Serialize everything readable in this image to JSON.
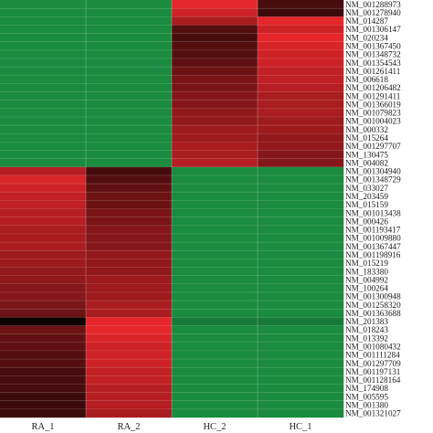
{
  "chart_data": {
    "type": "heatmap",
    "title": "",
    "columns": [
      "RA_1",
      "RA_2",
      "HC_2",
      "HC_1"
    ],
    "rows": [
      "NM_001288973",
      "NM_001278940",
      "NM_014287",
      "NM_001306147",
      "NM_020234",
      "NM_001367450",
      "NM_001348732",
      "NM_001354543",
      "NM_001261411",
      "NM_006618",
      "NM_001206482",
      "NM_001291411",
      "NM_001366019",
      "NM_001079823",
      "NM_001004023",
      "NM_000332",
      "NM_015264",
      "NM_001297707",
      "NM_130475",
      "NM_004082",
      "NM_001304940",
      "NM_001348729",
      "NM_033027",
      "NM_203459",
      "NM_015159",
      "NM_001013438",
      "NM_000426",
      "NM_001193417",
      "NM_001009880",
      "NM_001367447",
      "NM_001198916",
      "NM_015219",
      "NM_183380",
      "NM_004992",
      "NM_100264",
      "NM_001300948",
      "NM_001258320",
      "NM_001363688",
      "NM_201383",
      "NM_018243",
      "NM_013392",
      "NM_001080432",
      "NM_001111284",
      "NM_001297709",
      "NM_001197131",
      "NM_001128164",
      "NM_174908",
      "NM_005595",
      "NM_001380",
      "NM_001321027"
    ],
    "color_scale": {
      "low": "#1fa34a",
      "mid": "#000000",
      "high": "#f1282d"
    },
    "value_range": [
      -1,
      1
    ],
    "values": [
      [
        -0.85,
        -0.85,
        0.95,
        0.3
      ],
      [
        -0.85,
        -0.85,
        0.85,
        0.25
      ],
      [
        -0.85,
        -0.85,
        0.7,
        0.95
      ],
      [
        -0.85,
        -0.85,
        0.35,
        0.85
      ],
      [
        -0.85,
        -0.85,
        0.3,
        0.95
      ],
      [
        -0.85,
        -0.85,
        0.35,
        0.9
      ],
      [
        -0.85,
        -0.85,
        0.35,
        0.85
      ],
      [
        -0.85,
        -0.85,
        0.4,
        0.85
      ],
      [
        -0.85,
        -0.85,
        0.45,
        0.8
      ],
      [
        -0.85,
        -0.85,
        0.5,
        0.8
      ],
      [
        -0.85,
        -0.85,
        0.5,
        0.75
      ],
      [
        -0.85,
        -0.85,
        0.55,
        0.7
      ],
      [
        -0.85,
        -0.85,
        0.55,
        0.7
      ],
      [
        -0.85,
        -0.85,
        0.6,
        0.7
      ],
      [
        -0.85,
        -0.85,
        0.6,
        0.65
      ],
      [
        -0.85,
        -0.85,
        0.65,
        0.65
      ],
      [
        -0.85,
        -0.85,
        0.65,
        0.6
      ],
      [
        -0.85,
        -0.85,
        0.7,
        0.6
      ],
      [
        -0.85,
        -0.85,
        0.7,
        0.55
      ],
      [
        -0.85,
        -0.85,
        0.75,
        0.55
      ],
      [
        0.75,
        0.3,
        -0.85,
        -0.85
      ],
      [
        0.9,
        0.35,
        -0.85,
        -0.85
      ],
      [
        0.85,
        0.4,
        -0.85,
        -0.85
      ],
      [
        0.8,
        0.45,
        -0.85,
        -0.85
      ],
      [
        0.8,
        0.45,
        -0.85,
        -0.85
      ],
      [
        0.75,
        0.5,
        -0.85,
        -0.85
      ],
      [
        0.75,
        0.5,
        -0.85,
        -0.85
      ],
      [
        0.7,
        0.55,
        -0.85,
        -0.85
      ],
      [
        0.7,
        0.55,
        -0.85,
        -0.85
      ],
      [
        0.7,
        0.55,
        -0.85,
        -0.85
      ],
      [
        0.65,
        0.6,
        -0.85,
        -0.85
      ],
      [
        0.65,
        0.6,
        -0.85,
        -0.85
      ],
      [
        0.6,
        0.6,
        -0.85,
        -0.85
      ],
      [
        0.6,
        0.65,
        -0.85,
        -0.85
      ],
      [
        0.55,
        0.65,
        -0.85,
        -0.85
      ],
      [
        0.55,
        0.65,
        -0.85,
        -0.85
      ],
      [
        0.5,
        0.7,
        -0.85,
        -0.85
      ],
      [
        0.45,
        0.7,
        -0.85,
        -0.85
      ],
      [
        0.05,
        0.95,
        -0.75,
        -0.75
      ],
      [
        0.45,
        0.95,
        -0.85,
        -0.85
      ],
      [
        0.4,
        0.9,
        -0.85,
        -0.85
      ],
      [
        0.4,
        0.85,
        -0.85,
        -0.85
      ],
      [
        0.35,
        0.85,
        -0.85,
        -0.85
      ],
      [
        0.35,
        0.85,
        -0.85,
        -0.85
      ],
      [
        0.3,
        0.8,
        -0.85,
        -0.85
      ],
      [
        0.3,
        0.8,
        -0.85,
        -0.85
      ],
      [
        0.3,
        0.75,
        -0.85,
        -0.85
      ],
      [
        0.25,
        0.75,
        -0.85,
        -0.85
      ],
      [
        0.25,
        0.75,
        -0.85,
        -0.85
      ],
      [
        0.25,
        0.7,
        -0.85,
        -0.85
      ]
    ],
    "grid": false,
    "legend": "none"
  }
}
